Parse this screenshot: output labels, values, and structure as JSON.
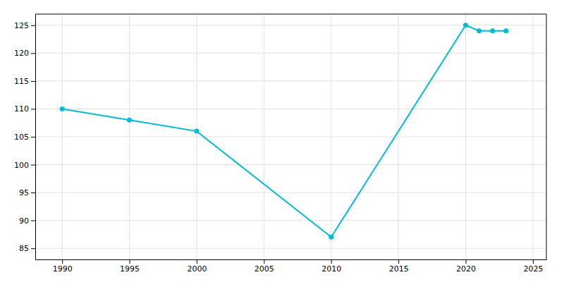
{
  "chart_data": {
    "type": "line",
    "x": [
      1990,
      1995,
      2000,
      2010,
      2020,
      2021,
      2022,
      2023
    ],
    "values": [
      110,
      108,
      106,
      87,
      125,
      124,
      124,
      124
    ],
    "color": "#00BCD4",
    "marker": "circle",
    "xlim": [
      1988,
      2026
    ],
    "ylim": [
      83,
      127
    ],
    "xticks": [
      1990,
      1995,
      2000,
      2005,
      2010,
      2015,
      2020,
      2025
    ],
    "yticks": [
      85,
      90,
      95,
      100,
      105,
      110,
      115,
      120,
      125
    ],
    "grid": true
  }
}
